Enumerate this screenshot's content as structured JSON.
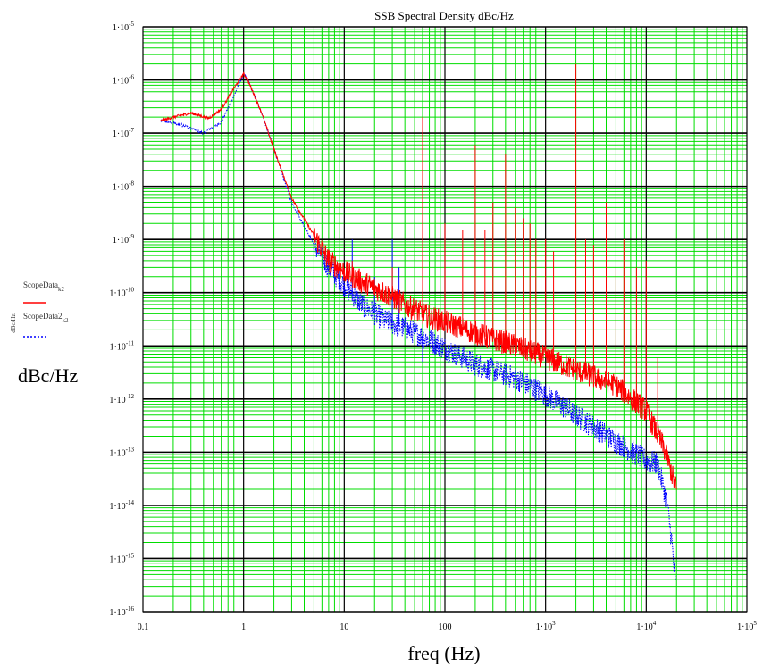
{
  "chart_data": {
    "type": "line",
    "title": "SSB Spectral Density dBc/Hz",
    "xlabel": "freq (Hz)",
    "ylabel": "dBc/Hz",
    "ylabel_small": "dBc/Hz",
    "x_scale": "log",
    "y_scale": "log",
    "xlim": [
      0.1,
      100000
    ],
    "ylim": [
      1e-16,
      1e-05
    ],
    "grid": true,
    "colors": {
      "grid_minor": "#00dd00",
      "grid_major": "#000000",
      "series_1": "#ff0000",
      "series_2": "#0000ff"
    },
    "x_ticks": [
      {
        "value": 0.1,
        "label": "0.1"
      },
      {
        "value": 1,
        "label": "1"
      },
      {
        "value": 10,
        "label": "10"
      },
      {
        "value": 100,
        "label": "100"
      },
      {
        "value": 1000,
        "base": "1·10",
        "exp": "3"
      },
      {
        "value": 10000,
        "base": "1·10",
        "exp": "4"
      },
      {
        "value": 100000,
        "base": "1·10",
        "exp": "5"
      }
    ],
    "y_ticks": [
      {
        "value": 1e-05,
        "base": "1·10",
        "exp": "-5"
      },
      {
        "value": 1e-06,
        "base": "1·10",
        "exp": "-6"
      },
      {
        "value": 1e-07,
        "base": "1·10",
        "exp": "-7"
      },
      {
        "value": 1e-08,
        "base": "1·10",
        "exp": "-8"
      },
      {
        "value": 1e-09,
        "base": "1·10",
        "exp": "-9"
      },
      {
        "value": 1e-10,
        "base": "1·10",
        "exp": "-10"
      },
      {
        "value": 1e-11,
        "base": "1·10",
        "exp": "-11"
      },
      {
        "value": 1e-12,
        "base": "1·10",
        "exp": "-12"
      },
      {
        "value": 1e-13,
        "base": "1·10",
        "exp": "-13"
      },
      {
        "value": 1e-14,
        "base": "1·10",
        "exp": "-14"
      },
      {
        "value": 1e-15,
        "base": "1·10",
        "exp": "-15"
      },
      {
        "value": 1e-16,
        "base": "1·10",
        "exp": "-16"
      }
    ],
    "legend_placement": "left",
    "series": [
      {
        "name": "ScopeData",
        "subscript": "k2",
        "style": "solid",
        "color": "#ff0000",
        "points": [
          [
            0.15,
            1.7e-07
          ],
          [
            0.2,
            2e-07
          ],
          [
            0.3,
            2.4e-07
          ],
          [
            0.45,
            1.9e-07
          ],
          [
            0.6,
            2.8e-07
          ],
          [
            0.8,
            7e-07
          ],
          [
            1.0,
            1.3e-06
          ],
          [
            1.1,
            1e-06
          ],
          [
            1.5,
            2.5e-07
          ],
          [
            2,
            5e-08
          ],
          [
            3,
            6e-09
          ],
          [
            5,
            1.2e-09
          ],
          [
            7,
            4e-10
          ],
          [
            10,
            2.5e-10
          ],
          [
            15,
            1.6e-10
          ],
          [
            25,
            1e-10
          ],
          [
            40,
            6e-11
          ],
          [
            70,
            3.5e-11
          ],
          [
            120,
            2.5e-11
          ],
          [
            250,
            1.5e-11
          ],
          [
            500,
            1e-11
          ],
          [
            1000,
            6e-12
          ],
          [
            2000,
            3.5e-12
          ],
          [
            5000,
            1.8e-12
          ],
          [
            10000,
            6e-13
          ],
          [
            15000,
            1.2e-13
          ],
          [
            20000,
            2e-14
          ]
        ],
        "peaks": [
          [
            5,
            1.5e-09
          ],
          [
            12,
            4e-10
          ],
          [
            30,
            3e-10
          ],
          [
            60,
            2e-07
          ],
          [
            100,
            2e-09
          ],
          [
            150,
            1.5e-09
          ],
          [
            200,
            6e-08
          ],
          [
            250,
            1.5e-09
          ],
          [
            300,
            5e-09
          ],
          [
            400,
            4e-08
          ],
          [
            500,
            4e-09
          ],
          [
            600,
            2.5e-09
          ],
          [
            700,
            2e-09
          ],
          [
            800,
            1e-09
          ],
          [
            1000,
            1e-09
          ],
          [
            1200,
            6e-10
          ],
          [
            2000,
            2e-06
          ],
          [
            2500,
            1e-09
          ],
          [
            3000,
            8e-10
          ],
          [
            4000,
            5e-09
          ],
          [
            5000,
            3e-10
          ],
          [
            6000,
            1e-09
          ],
          [
            8000,
            3e-10
          ],
          [
            10000,
            4e-10
          ],
          [
            13000,
            6e-12
          ]
        ]
      },
      {
        "name": "ScopeData2",
        "subscript": "k2",
        "style": "dotted",
        "color": "#0000ff",
        "points": [
          [
            0.15,
            1.7e-07
          ],
          [
            0.25,
            1.4e-07
          ],
          [
            0.4,
            1e-07
          ],
          [
            0.6,
            1.6e-07
          ],
          [
            0.8,
            5e-07
          ],
          [
            1.0,
            1.3e-06
          ],
          [
            1.1,
            1e-06
          ],
          [
            1.5,
            2.5e-07
          ],
          [
            2,
            5e-08
          ],
          [
            3,
            5e-09
          ],
          [
            5,
            8e-10
          ],
          [
            7,
            3e-10
          ],
          [
            10,
            1.4e-10
          ],
          [
            15,
            6e-11
          ],
          [
            25,
            3e-11
          ],
          [
            50,
            1.8e-11
          ],
          [
            100,
            9e-12
          ],
          [
            200,
            4.5e-12
          ],
          [
            500,
            2.5e-12
          ],
          [
            1000,
            1.2e-12
          ],
          [
            2000,
            5e-13
          ],
          [
            5000,
            1.6e-13
          ],
          [
            10000,
            7e-14
          ],
          [
            13000,
            6e-14
          ],
          [
            16000,
            1.2e-14
          ],
          [
            18000,
            2e-15
          ],
          [
            19500,
            3e-16
          ]
        ],
        "peaks": [
          [
            12,
            1e-09
          ],
          [
            20,
            2e-10
          ],
          [
            30,
            1e-09
          ],
          [
            35,
            3e-10
          ],
          [
            60,
            5e-12
          ]
        ]
      }
    ]
  }
}
